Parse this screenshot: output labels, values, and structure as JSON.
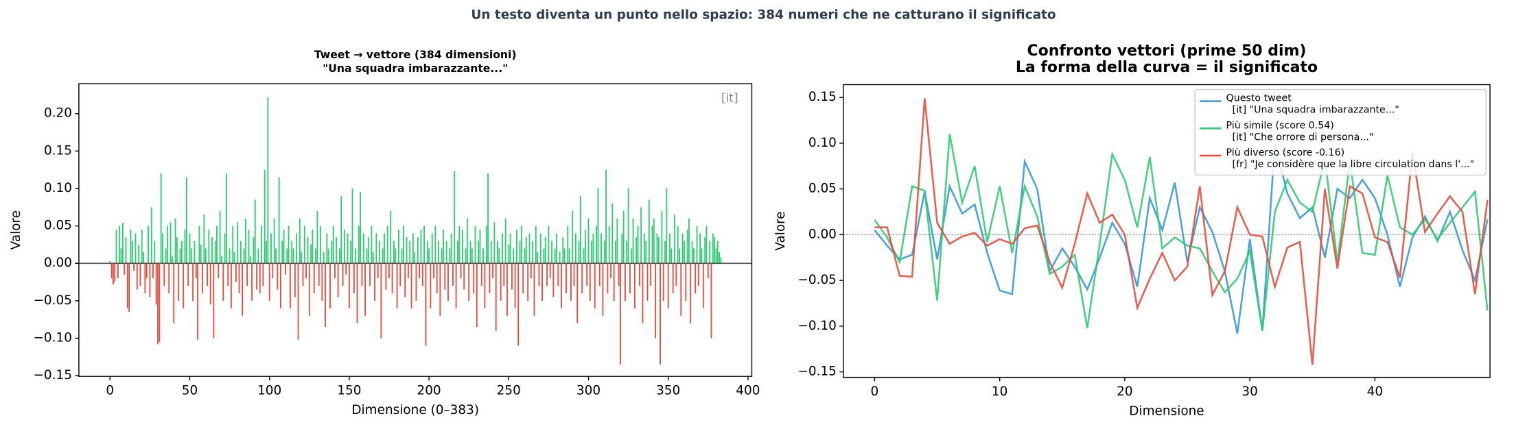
{
  "title": "Un testo diventa un punto nello spazio: 384 numeri che ne catturano il significato",
  "chart_data": [
    {
      "type": "bar",
      "title": "Tweet → vettore (384 dimensioni)\n\"Una squadra imbarazzante...\"",
      "xlabel": "Dimensione (0–383)",
      "ylabel": "Valore",
      "annotation": "[it]",
      "pos_color": "#2ecc71",
      "neg_color": "#e74c3c",
      "baseline": 0,
      "baseline_style": "solid",
      "xlim": [
        -19.5,
        402.4
      ],
      "ylim": [
        -0.151,
        0.24
      ],
      "xticks": [
        0,
        50,
        100,
        150,
        200,
        250,
        300,
        350,
        400
      ],
      "yticks": [
        {
          "value": -0.15,
          "label": "−0.15"
        },
        {
          "value": -0.1,
          "label": "−0.10"
        },
        {
          "value": -0.05,
          "label": "−0.05"
        },
        {
          "value": 0,
          "label": "0.00"
        },
        {
          "value": 0.05,
          "label": "0.05"
        },
        {
          "value": 0.1,
          "label": "0.10"
        },
        {
          "value": 0.15,
          "label": "0.15"
        },
        {
          "value": 0.2,
          "label": "0.20"
        }
      ],
      "values": [
        0.003,
        -0.02,
        -0.028,
        -0.025,
        0.045,
        -0.02,
        0.05,
        0.02,
        0.054,
        -0.015,
        0.035,
        -0.06,
        -0.065,
        0.045,
        0.03,
        -0.01,
        0.04,
        -0.035,
        0.025,
        -0.03,
        0.045,
        0.015,
        -0.04,
        -0.02,
        0.05,
        -0.045,
        0.075,
        -0.02,
        0.03,
        -0.055,
        -0.108,
        -0.105,
        0.12,
        0.04,
        -0.03,
        0.02,
        0.05,
        -0.04,
        0.055,
        0.01,
        -0.08,
        0.06,
        0.035,
        -0.05,
        0.02,
        0.03,
        -0.06,
        0.045,
        0.115,
        -0.03,
        0.04,
        0.02,
        -0.05,
        0.03,
        -0.02,
        -0.102,
        0.05,
        0.025,
        -0.04,
        0.065,
        0.02,
        -0.03,
        0.045,
        -0.055,
        0.035,
        -0.1,
        0.03,
        0.05,
        -0.02,
        0.07,
        0.01,
        -0.05,
        0.04,
        0.12,
        -0.03,
        0.02,
        -0.06,
        0.05,
        0.015,
        -0.025,
        0.055,
        -0.04,
        0.03,
        -0.07,
        0.02,
        0.06,
        -0.03,
        0.045,
        0.01,
        -0.05,
        0.035,
        0.085,
        -0.035,
        0.02,
        -0.04,
        0.05,
        -0.03,
        0.125,
        0.03,
        0.222,
        -0.05,
        0.04,
        -0.02,
        0.06,
        0.02,
        -0.035,
        0.115,
        -0.06,
        0.03,
        0.045,
        -0.015,
        0.02,
        0.05,
        -0.06,
        0.03,
        0.02,
        -0.045,
        0.04,
        -0.102,
        0.06,
        0.015,
        -0.03,
        0.05,
        -0.02,
        0.035,
        -0.07,
        0.025,
        0.045,
        -0.04,
        0.02,
        0.07,
        -0.03,
        0.05,
        -0.05,
        0.015,
        -0.085,
        0.04,
        0.02,
        -0.06,
        0.03,
        0.05,
        -0.02,
        0.035,
        -0.045,
        0.02,
        0.09,
        -0.03,
        0.045,
        -0.015,
        0.04,
        -0.06,
        0.03,
        0.1,
        -0.04,
        0.02,
        -0.08,
        0.05,
        0.095,
        -0.03,
        0.04,
        -0.07,
        0.02,
        0.035,
        -0.03,
        0.05,
        0.015,
        -0.05,
        0.04,
        -0.02,
        0.03,
        -0.1,
        0.02,
        0.04,
        -0.035,
        0.05,
        -0.02,
        0.07,
        -0.04,
        0.03,
        0.02,
        -0.06,
        0.045,
        -0.03,
        0.02,
        0.05,
        -0.045,
        0.035,
        -0.02,
        0.03,
        -0.06,
        0.04,
        0.015,
        -0.05,
        0.035,
        -0.02,
        0.045,
        -0.03,
        0.05,
        -0.11,
        0.03,
        0.02,
        -0.06,
        0.04,
        -0.02,
        0.05,
        -0.04,
        0.03,
        -0.07,
        0.02,
        0.045,
        -0.035,
        0.03,
        -0.05,
        0.02,
        0.04,
        -0.03,
        0.123,
        -0.06,
        0.03,
        0.05,
        -0.02,
        0.045,
        -0.035,
        0.02,
        0.06,
        -0.05,
        0.03,
        0.02,
        -0.04,
        0.05,
        -0.085,
        0.03,
        0.045,
        -0.03,
        0.02,
        -0.06,
        0.05,
        0.12,
        -0.04,
        0.03,
        -0.02,
        0.055,
        -0.09,
        0.03,
        0.02,
        -0.05,
        0.04,
        -0.03,
        0.06,
        -0.07,
        0.025,
        0.04,
        -0.035,
        0.02,
        -0.06,
        0.045,
        -0.11,
        0.03,
        0.05,
        -0.04,
        0.02,
        0.035,
        -0.05,
        0.04,
        -0.02,
        0.03,
        -0.07,
        0.05,
        0.015,
        -0.03,
        0.04,
        -0.05,
        0.02,
        0.035,
        -0.03,
        0.05,
        -0.02,
        0.03,
        -0.045,
        0.02,
        0.04,
        -0.03,
        0.015,
        -0.06,
        0.035,
        0.02,
        -0.04,
        0.05,
        0.02,
        -0.05,
        0.07,
        -0.03,
        0.04,
        -0.08,
        0.03,
        0.09,
        -0.04,
        0.02,
        0.045,
        -0.03,
        0.06,
        -0.05,
        0.03,
        0.04,
        -0.06,
        0.05,
        0.1,
        -0.03,
        0.04,
        -0.07,
        0.03,
        0.125,
        -0.04,
        0.05,
        -0.02,
        0.08,
        -0.05,
        0.03,
        0.06,
        -0.03,
        -0.135,
        0.04,
        0.07,
        -0.05,
        0.03,
        0.1,
        -0.04,
        0.02,
        0.06,
        -0.06,
        0.035,
        0.05,
        -0.03,
        0.075,
        -0.08,
        0.04,
        0.03,
        -0.05,
        0.085,
        -0.03,
        0.05,
        0.06,
        -0.1,
        0.04,
        0.035,
        -0.135,
        0.07,
        -0.05,
        0.03,
        0.1,
        -0.06,
        0.04,
        0.02,
        -0.04,
        0.065,
        -0.03,
        0.05,
        0.02,
        -0.07,
        0.04,
        0.03,
        -0.05,
        0.045,
        0.06,
        -0.08,
        0.03,
        0.02,
        -0.04,
        0.05,
        -0.03,
        0.04,
        0.02,
        -0.06,
        0.035,
        0.05,
        -0.02,
        0.03,
        -0.1,
        0.04,
        0.035,
        0.02,
        0.03,
        0.015,
        0.008
      ]
    },
    {
      "type": "line",
      "title": "Confronto vettori (prime 50 dim)\nLa forma della curva = il significato",
      "xlabel": "Dimensione",
      "ylabel": "Valore",
      "baseline": 0,
      "baseline_style": "dotted",
      "legend": "upper right",
      "xlim": [
        -2.5,
        49.2
      ],
      "ylim": [
        -0.156,
        0.164
      ],
      "xticks": [
        0,
        10,
        20,
        30,
        40
      ],
      "yticks": [
        {
          "value": -0.15,
          "label": "−0.15"
        },
        {
          "value": -0.1,
          "label": "−0.10"
        },
        {
          "value": -0.05,
          "label": "−0.05"
        },
        {
          "value": 0,
          "label": "0.00"
        },
        {
          "value": 0.05,
          "label": "0.05"
        },
        {
          "value": 0.1,
          "label": "0.10"
        },
        {
          "value": 0.15,
          "label": "0.15"
        }
      ],
      "x": [
        0,
        1,
        2,
        3,
        4,
        5,
        6,
        7,
        8,
        9,
        10,
        11,
        12,
        13,
        14,
        15,
        16,
        17,
        18,
        19,
        20,
        21,
        22,
        23,
        24,
        25,
        26,
        27,
        28,
        29,
        30,
        31,
        32,
        33,
        34,
        35,
        36,
        37,
        38,
        39,
        40,
        41,
        42,
        43,
        44,
        45,
        46,
        47,
        48,
        49
      ],
      "series": [
        {
          "name": "Questo tweet\n  [it] \"Una squadra imbarazzante...\"",
          "color": "#3498db",
          "values": [
            0.005,
            -0.012,
            -0.027,
            -0.022,
            0.047,
            -0.027,
            0.053,
            0.023,
            0.033,
            -0.02,
            -0.061,
            -0.065,
            0.08,
            0.05,
            -0.04,
            -0.015,
            -0.035,
            -0.06,
            -0.025,
            0.013,
            -0.01,
            -0.057,
            0.04,
            0.005,
            0.057,
            -0.03,
            0.03,
            0.003,
            -0.04,
            -0.108,
            -0.005,
            -0.105,
            0.1,
            0.045,
            0.018,
            0.03,
            -0.025,
            0.05,
            0.04,
            0.06,
            0.04,
            0.0,
            -0.057,
            -0.003,
            0.02,
            -0.007,
            0.025,
            -0.017,
            -0.05,
            0.017
          ]
        },
        {
          "name": "Più simile (score 0.54)\n  [it] \"Che orrore di persona...\"",
          "color": "#2ecc71",
          "values": [
            0.016,
            -0.003,
            -0.03,
            0.053,
            0.048,
            -0.072,
            0.11,
            0.035,
            0.075,
            -0.008,
            0.053,
            -0.02,
            0.053,
            0.02,
            -0.043,
            -0.035,
            -0.022,
            -0.102,
            -0.01,
            0.088,
            0.06,
            0.008,
            0.085,
            -0.015,
            -0.003,
            -0.012,
            -0.015,
            -0.04,
            -0.063,
            -0.048,
            -0.018,
            -0.105,
            0.025,
            0.06,
            0.035,
            0.025,
            0.083,
            -0.03,
            0.08,
            -0.02,
            -0.022,
            0.065,
            0.008,
            0.0,
            0.017,
            -0.005,
            0.013,
            0.03,
            0.047,
            -0.083
          ]
        },
        {
          "name": "Più diverso (score -0.16)\n  [fr] \"Je considère que la libre circulation dans l'...\"",
          "color": "#e74c3c",
          "values": [
            0.008,
            0.008,
            -0.045,
            -0.046,
            0.149,
            0.013,
            -0.01,
            -0.002,
            0.002,
            -0.012,
            -0.005,
            -0.01,
            0.007,
            0.01,
            -0.03,
            -0.058,
            -0.01,
            0.045,
            0.013,
            0.022,
            0.0,
            -0.08,
            -0.048,
            -0.02,
            -0.05,
            -0.035,
            0.053,
            -0.066,
            -0.04,
            0.03,
            0.0,
            -0.002,
            -0.057,
            -0.014,
            -0.008,
            -0.142,
            0.05,
            -0.037,
            0.053,
            0.045,
            -0.003,
            -0.008,
            -0.047,
            0.09,
            0.003,
            0.023,
            0.042,
            0.025,
            -0.065,
            0.038
          ]
        }
      ]
    }
  ]
}
